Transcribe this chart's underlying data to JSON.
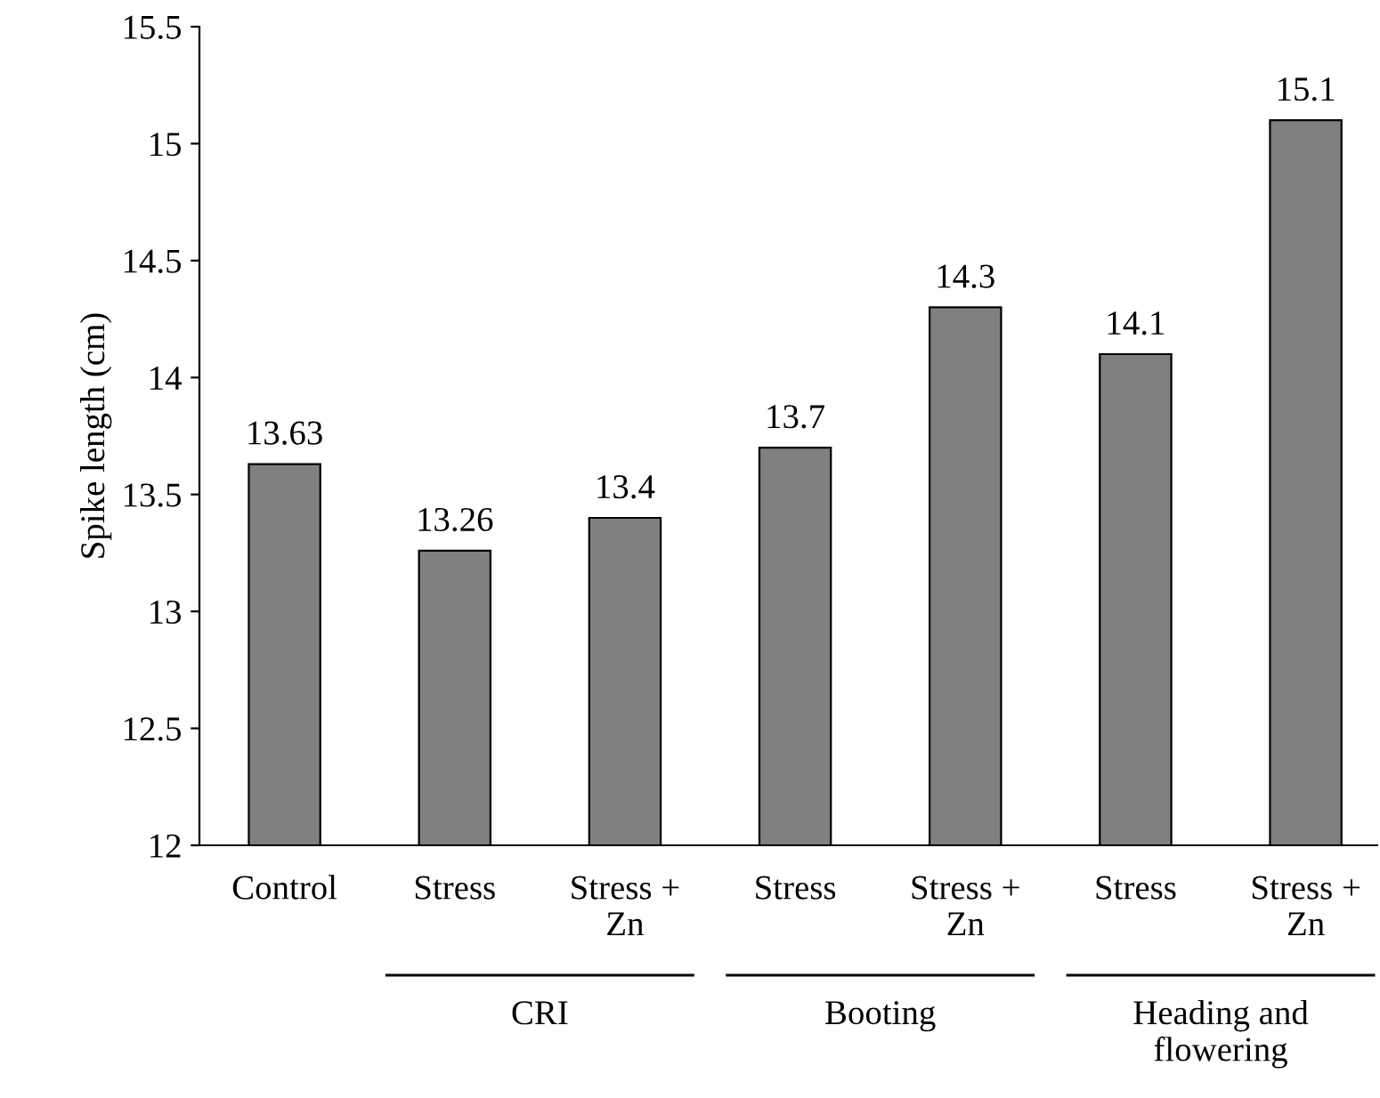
{
  "chart_data": {
    "type": "bar",
    "ylabel": "Spike length (cm)",
    "categories": [
      "Control",
      "Stress",
      "Stress +\nZn",
      "Stress",
      "Stress +\nZn",
      "Stress",
      "Stress +\nZn"
    ],
    "values": [
      13.63,
      13.26,
      13.4,
      13.7,
      14.3,
      14.1,
      15.1
    ],
    "color": "#808080",
    "ylim": [
      12,
      15.5
    ],
    "yticks": [
      12,
      12.5,
      13,
      13.5,
      14,
      14.5,
      15,
      15.5
    ],
    "data_labels": true,
    "grid": false,
    "legend": false,
    "annotations": [
      "CRI",
      "Booting",
      "Heading and\nflowering"
    ]
  }
}
